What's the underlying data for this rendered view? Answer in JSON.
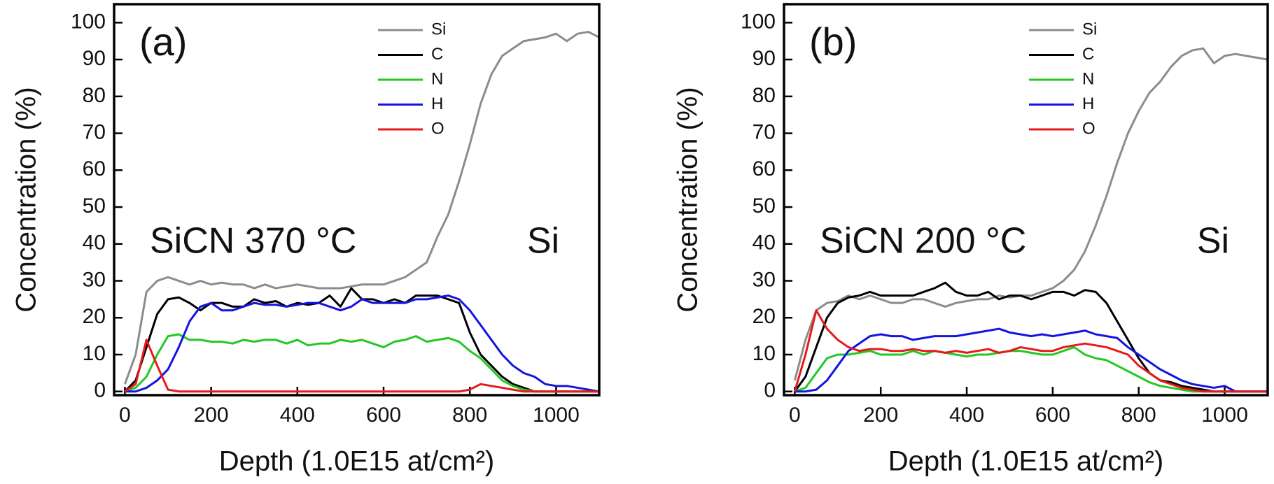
{
  "chart_data": [
    {
      "type": "line",
      "x_label": "Depth (1.0E15 at/cm²)",
      "y_label": "Concentration (%)",
      "annotations": [
        "(a)",
        "SiCN 370 °C",
        "Si"
      ],
      "xlim": [
        -25,
        1100
      ],
      "ylim": [
        -1,
        105
      ],
      "xticks": [
        0,
        200,
        400,
        600,
        800,
        1000
      ],
      "yticks": [
        0,
        10,
        20,
        30,
        40,
        50,
        60,
        70,
        80,
        90,
        100
      ],
      "x": [
        0,
        25,
        50,
        75,
        100,
        125,
        150,
        175,
        200,
        225,
        250,
        275,
        300,
        325,
        350,
        375,
        400,
        425,
        450,
        475,
        500,
        525,
        550,
        575,
        600,
        625,
        650,
        675,
        700,
        725,
        750,
        775,
        800,
        825,
        850,
        875,
        900,
        925,
        950,
        975,
        1000,
        1025,
        1050,
        1075,
        1100
      ],
      "series": [
        {
          "name": "Si",
          "color": "#8c8c8c",
          "values": [
            2,
            10,
            27,
            30,
            31,
            30,
            29,
            30,
            29,
            29.5,
            29,
            29,
            28,
            29,
            28,
            28.5,
            29,
            28.5,
            28,
            28,
            28,
            28.5,
            29,
            29,
            29,
            30,
            31,
            33,
            35,
            42,
            48,
            57,
            67,
            78,
            86,
            91,
            93,
            95,
            95.5,
            96,
            97,
            95,
            97,
            97.5,
            96
          ]
        },
        {
          "name": "C",
          "color": "#000000",
          "values": [
            0,
            3,
            12,
            21,
            25,
            25.5,
            24,
            22,
            24,
            24,
            23,
            23,
            25,
            24,
            24.5,
            23,
            24,
            23.5,
            24,
            26,
            23,
            28,
            25,
            25,
            24,
            25,
            24,
            26,
            26,
            26,
            25,
            24,
            16,
            10,
            7,
            4,
            2,
            1,
            0,
            0,
            0,
            0,
            0,
            0,
            0
          ]
        },
        {
          "name": "N",
          "color": "#22c922",
          "values": [
            0,
            1,
            4,
            10,
            15,
            15.5,
            14,
            14,
            13.5,
            13.5,
            13,
            14,
            13.5,
            14,
            14,
            13,
            14,
            12.5,
            13,
            13,
            14,
            13.5,
            14,
            13,
            12,
            13.5,
            14,
            15,
            13.5,
            14,
            14.5,
            13.5,
            11,
            9,
            6,
            3,
            1.5,
            0.5,
            0,
            0,
            0,
            0,
            0,
            0,
            0
          ]
        },
        {
          "name": "H",
          "color": "#1414e0",
          "values": [
            0,
            0,
            1,
            3,
            6,
            12,
            19,
            23,
            24,
            22,
            22,
            23,
            24,
            23.5,
            23.5,
            23,
            23.5,
            24,
            24,
            23,
            22,
            23,
            25,
            24,
            24,
            24,
            24,
            25,
            25,
            25.5,
            26,
            25,
            22,
            18,
            14,
            10,
            7,
            5,
            4,
            2,
            1.5,
            1.5,
            1,
            0.5,
            0
          ]
        },
        {
          "name": "O",
          "color": "#e8191a",
          "values": [
            0,
            2,
            14,
            7,
            0.5,
            0,
            0,
            0,
            0,
            0,
            0,
            0,
            0,
            0,
            0,
            0,
            0,
            0,
            0,
            0,
            0,
            0,
            0,
            0,
            0,
            0,
            0,
            0,
            0,
            0,
            0,
            0,
            0.5,
            2,
            1.5,
            1,
            0.5,
            0,
            0,
            0,
            0,
            0,
            0,
            0,
            0
          ]
        }
      ]
    },
    {
      "type": "line",
      "x_label": "Depth (1.0E15 at/cm²)",
      "y_label": "Concentration (%)",
      "annotations": [
        "(b)",
        "SiCN 200 °C",
        "Si"
      ],
      "xlim": [
        -25,
        1100
      ],
      "ylim": [
        -1,
        105
      ],
      "xticks": [
        0,
        200,
        400,
        600,
        800,
        1000
      ],
      "yticks": [
        0,
        10,
        20,
        30,
        40,
        50,
        60,
        70,
        80,
        90,
        100
      ],
      "x": [
        0,
        25,
        50,
        75,
        100,
        125,
        150,
        175,
        200,
        225,
        250,
        275,
        300,
        325,
        350,
        375,
        400,
        425,
        450,
        475,
        500,
        525,
        550,
        575,
        600,
        625,
        650,
        675,
        700,
        725,
        750,
        775,
        800,
        825,
        850,
        875,
        900,
        925,
        950,
        975,
        1000,
        1025,
        1050,
        1075,
        1100
      ],
      "series": [
        {
          "name": "Si",
          "color": "#8c8c8c",
          "values": [
            3,
            14,
            22,
            24,
            24.5,
            26,
            25,
            26,
            25,
            24,
            24,
            25,
            25,
            24,
            23,
            24,
            24.5,
            25,
            25,
            26,
            25.5,
            26,
            26,
            27,
            28,
            30,
            33,
            38,
            45,
            53,
            62,
            70,
            76,
            81,
            84,
            88,
            91,
            92.5,
            93,
            89,
            91,
            91.5,
            91,
            90.5,
            90
          ]
        },
        {
          "name": "C",
          "color": "#000000",
          "values": [
            0,
            4,
            12,
            20,
            24,
            25.5,
            26,
            27,
            26,
            26,
            26,
            26,
            27,
            28,
            29.5,
            27,
            26,
            26,
            27,
            25,
            26,
            26,
            25,
            26,
            27,
            27,
            26,
            27.5,
            27,
            24,
            19,
            14,
            9,
            5,
            3,
            2.5,
            1.5,
            1,
            0.5,
            0,
            0,
            0,
            0,
            0,
            0
          ]
        },
        {
          "name": "N",
          "color": "#22c922",
          "values": [
            0,
            1,
            5,
            9,
            10,
            10,
            10.5,
            11,
            10,
            10,
            10,
            11,
            10,
            11,
            10.5,
            10,
            9.5,
            10,
            10,
            10.5,
            11,
            11,
            10.5,
            10,
            10,
            11,
            12,
            10,
            9,
            8.5,
            7,
            5.5,
            4,
            2.5,
            1.5,
            1,
            0.5,
            0,
            0,
            0,
            0,
            0,
            0,
            0,
            0
          ]
        },
        {
          "name": "H",
          "color": "#1414e0",
          "values": [
            0,
            0,
            0.5,
            3,
            7,
            11,
            13,
            15,
            15.5,
            15,
            15,
            14,
            14.5,
            15,
            15,
            15,
            15.5,
            16,
            16.5,
            17,
            16,
            15.5,
            15,
            15.5,
            15,
            15.5,
            16,
            16.5,
            15.5,
            15,
            14.5,
            12,
            10,
            8,
            6,
            4.5,
            3,
            2,
            1.5,
            1,
            1.5,
            0,
            0,
            0,
            0
          ]
        },
        {
          "name": "O",
          "color": "#e8191a",
          "values": [
            0,
            10,
            22,
            17,
            14,
            12,
            11,
            11.5,
            11.5,
            11,
            11,
            11.5,
            11,
            11,
            10.5,
            11,
            10.5,
            11,
            11.5,
            10.5,
            11,
            12,
            11.5,
            11,
            11,
            12,
            12.5,
            13,
            12.5,
            12,
            11,
            10,
            7,
            5,
            3,
            2,
            1,
            0.5,
            0,
            0,
            0,
            0,
            0,
            0,
            0
          ]
        }
      ]
    }
  ]
}
